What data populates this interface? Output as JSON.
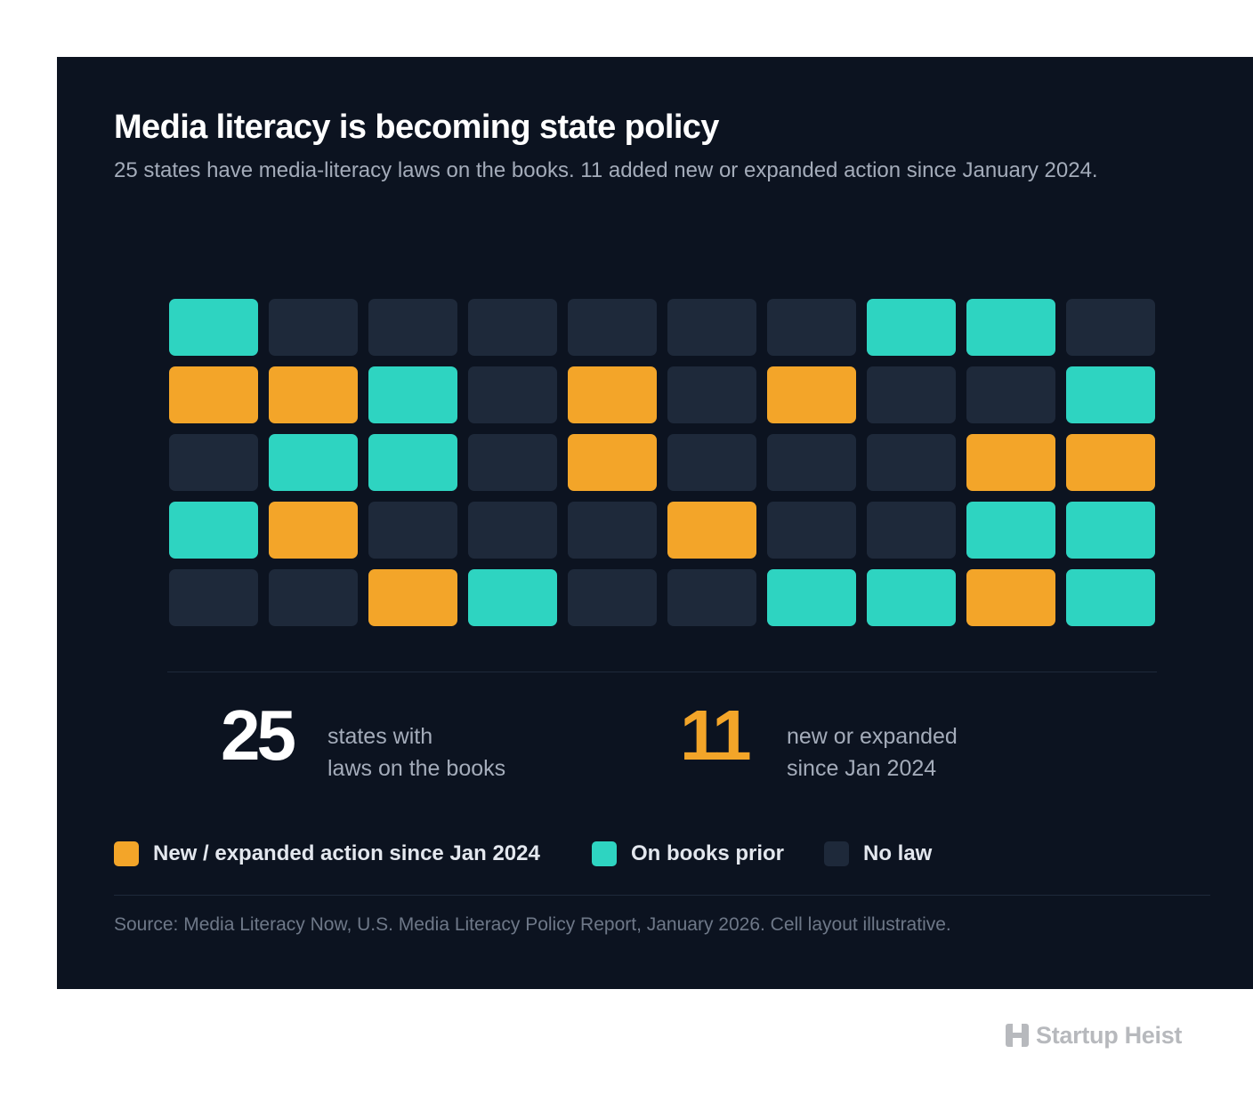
{
  "chart_data": {
    "type": "waffle",
    "title": "Media literacy is becoming state policy",
    "subtitle": "25 states have media-literacy laws on the books. 11 added new or expanded action since January 2024.",
    "rows": 5,
    "columns": 10,
    "categories": [
      "new",
      "prior",
      "none"
    ],
    "cells": [
      [
        "prior",
        "none",
        "none",
        "none",
        "none",
        "none",
        "none",
        "prior",
        "prior",
        "none"
      ],
      [
        "new",
        "new",
        "prior",
        "none",
        "new",
        "none",
        "new",
        "none",
        "none",
        "prior"
      ],
      [
        "none",
        "prior",
        "prior",
        "none",
        "new",
        "none",
        "none",
        "none",
        "new",
        "new"
      ],
      [
        "prior",
        "new",
        "none",
        "none",
        "none",
        "new",
        "none",
        "none",
        "prior",
        "prior"
      ],
      [
        "none",
        "none",
        "new",
        "prior",
        "none",
        "none",
        "prior",
        "prior",
        "new",
        "prior"
      ]
    ],
    "colors": {
      "new": "#f3a529",
      "prior": "#2ed4c1",
      "none": "#1e293a"
    },
    "legend": [
      {
        "key": "new",
        "label": "New / expanded action since Jan 2024"
      },
      {
        "key": "prior",
        "label": "On books prior"
      },
      {
        "key": "none",
        "label": "No law"
      }
    ],
    "legend_position": "bottom-left"
  },
  "stats": {
    "total": {
      "value": "25",
      "line1": "states with",
      "line2": "laws on the books"
    },
    "new": {
      "value": "11",
      "line1": "new or expanded",
      "line2": "since Jan 2024"
    }
  },
  "source": "Source: Media Literacy Now, U.S. Media Literacy Policy Report, January 2026. Cell layout illustrative.",
  "brand": {
    "name": "Startup Heist",
    "icon": "h-logo-icon",
    "color": "#b7b9bd"
  },
  "colors": {
    "background": "#0c1320",
    "accent": "#f3a529",
    "teal": "#2ed4c1"
  }
}
